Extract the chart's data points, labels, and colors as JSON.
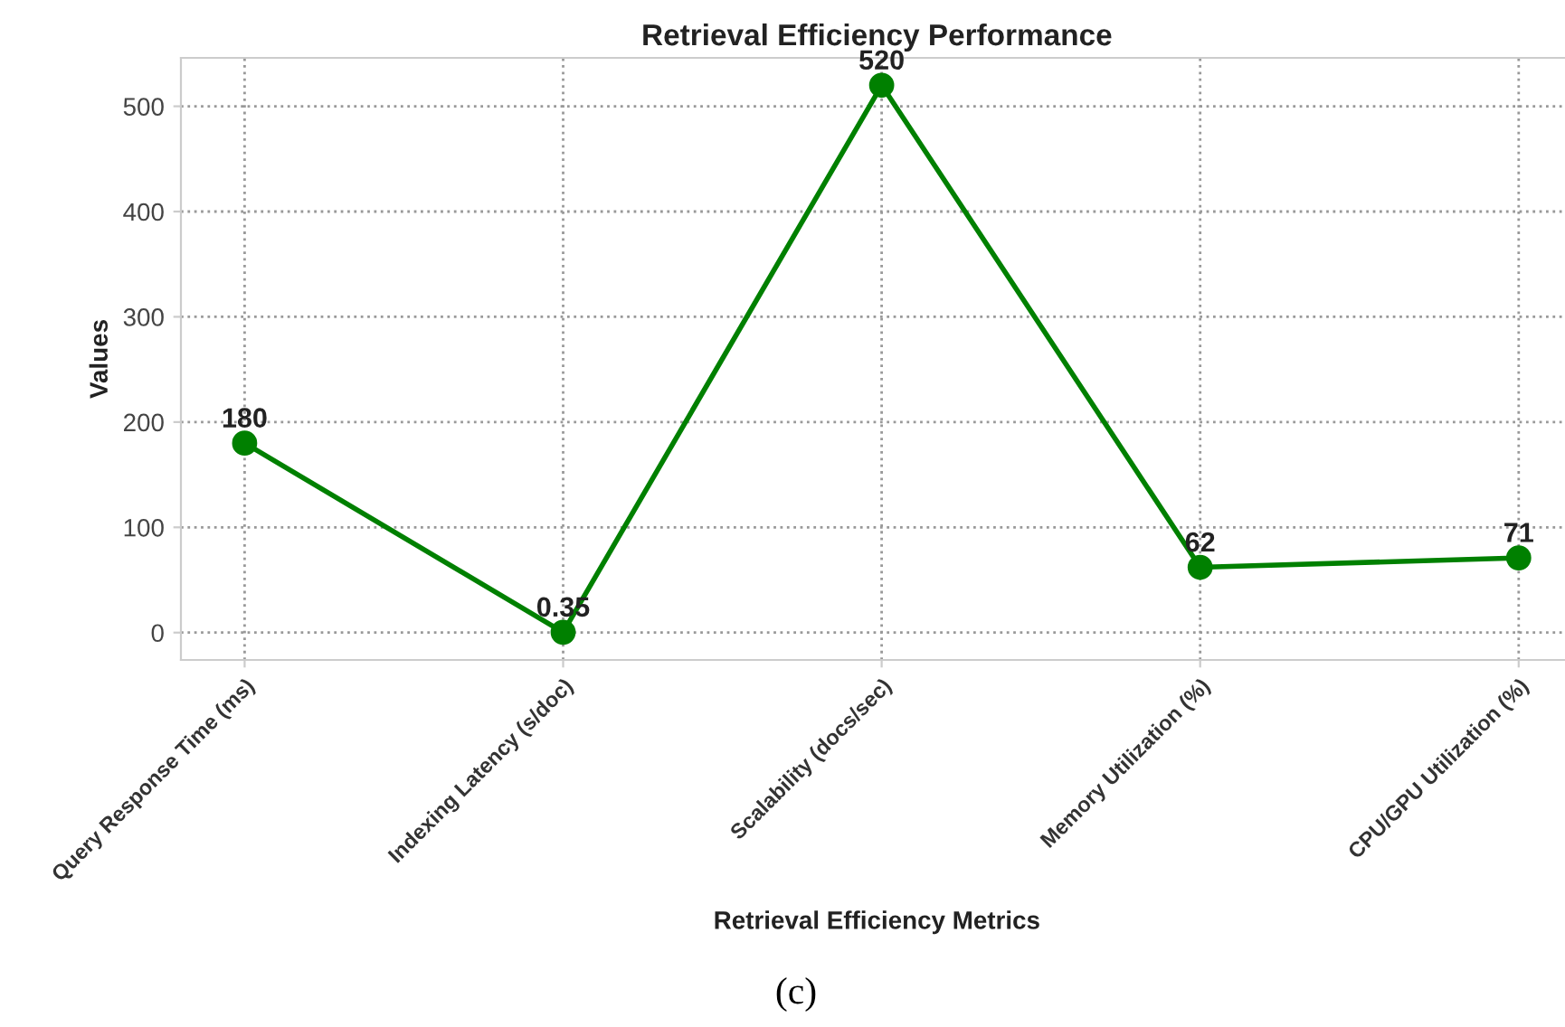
{
  "chart_data": {
    "type": "line",
    "title": "Retrieval Efficiency Performance",
    "xlabel": "Retrieval Efficiency Metrics",
    "ylabel": "Values",
    "categories": [
      "Query Response Time (ms)",
      "Indexing Latency (s/doc)",
      "Scalability (docs/sec)",
      "Memory Utilization (%)",
      "CPU/GPU Utilization (%)"
    ],
    "series": [
      {
        "color": "#008000",
        "values": [
          180,
          0.35,
          520,
          62,
          71
        ]
      }
    ],
    "ylim": [
      -26,
      546
    ],
    "yticks": [
      0,
      100,
      200,
      300,
      400,
      500
    ],
    "grid": true,
    "marker": "circle",
    "line_style": "solid",
    "data_labels": true,
    "annotations": [
      "(c)"
    ]
  }
}
